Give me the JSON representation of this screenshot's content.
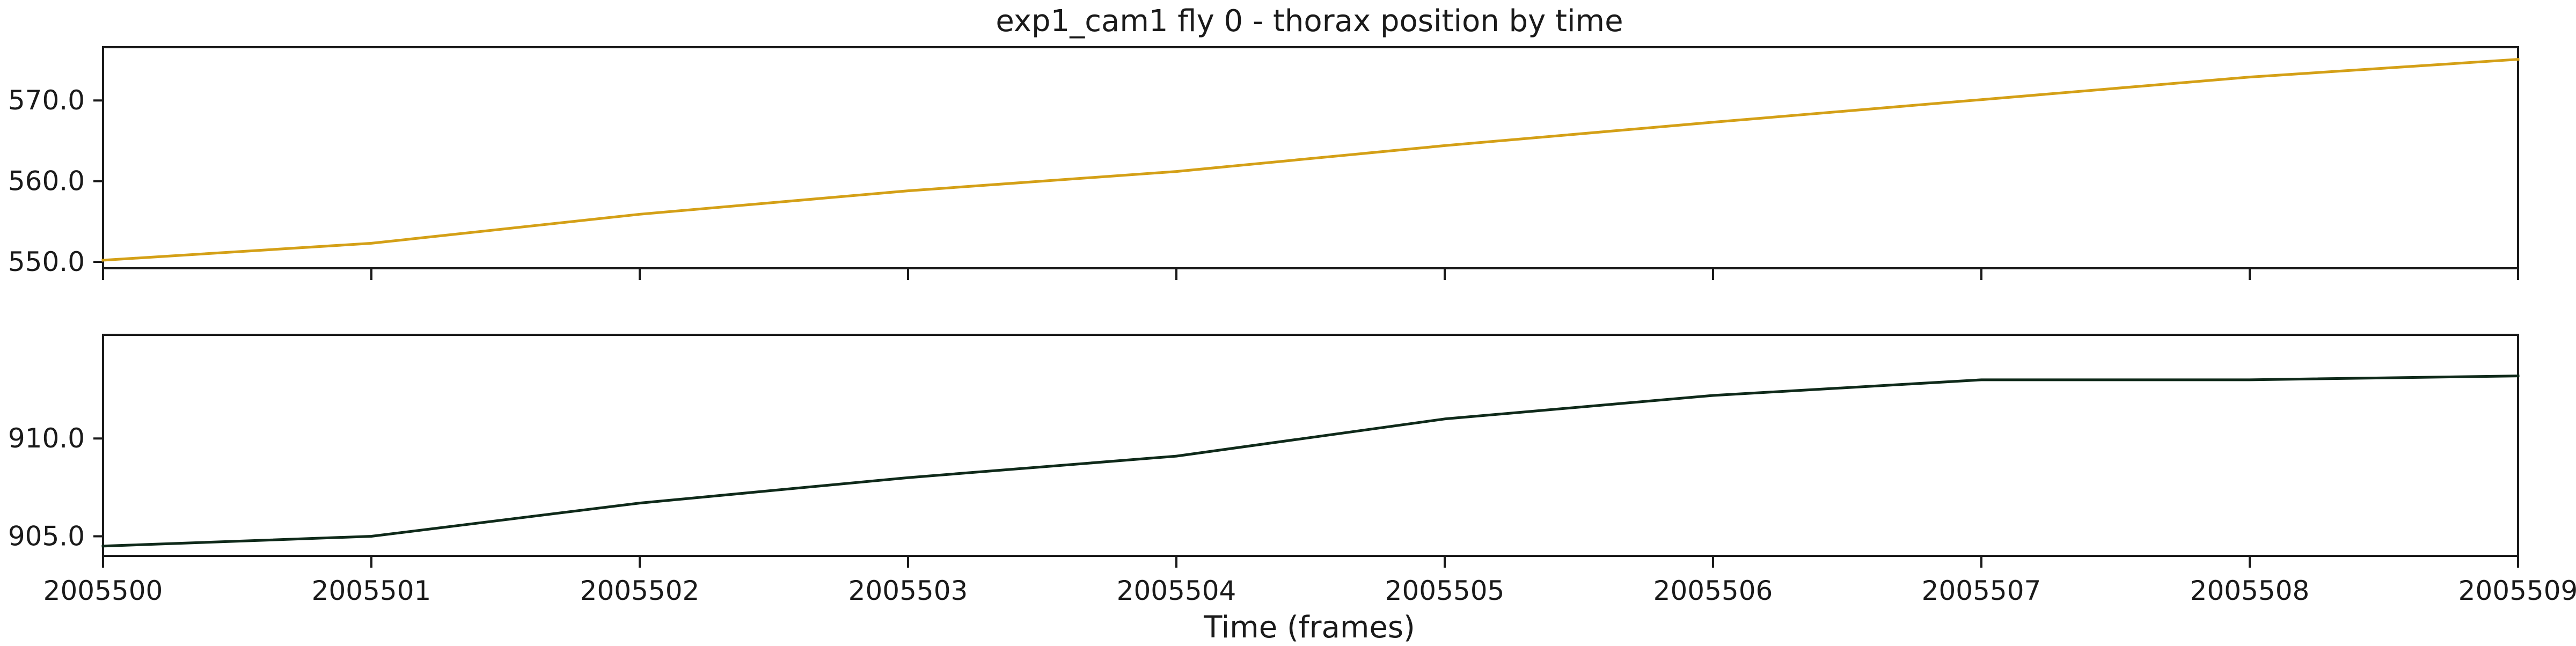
{
  "chart_data": {
    "type": "line",
    "title": "exp1_cam1 fly 0 - thorax position by time",
    "xlabel": "Time (frames)",
    "x": [
      2005500,
      2005501,
      2005502,
      2005503,
      2005504,
      2005505,
      2005506,
      2005507,
      2005508,
      2005509
    ],
    "xlim": [
      2005500,
      2005509
    ],
    "xticks": [
      "2005500",
      "2005501",
      "2005502",
      "2005503",
      "2005504",
      "2005505",
      "2005506",
      "2005507",
      "2005508",
      "2005509"
    ],
    "subplots": [
      {
        "ylabel": "",
        "ylim": [
          549.2,
          576.6
        ],
        "yticks": [
          "550.0",
          "560.0",
          "570.0"
        ],
        "ytick_values": [
          550,
          560,
          570
        ],
        "color": "#D4A017",
        "values": [
          550.2,
          552.3,
          555.9,
          558.8,
          561.2,
          564.4,
          567.3,
          570.1,
          572.9,
          575.1
        ]
      },
      {
        "ylabel": "",
        "ylim": [
          904.0,
          915.3
        ],
        "yticks": [
          "905.0",
          "910.0"
        ],
        "ytick_values": [
          905,
          910
        ],
        "color": "#0F2A1A",
        "values": [
          904.5,
          905.0,
          906.7,
          908.0,
          909.1,
          911.0,
          912.2,
          913.0,
          913.0,
          913.2
        ]
      }
    ],
    "grid": false,
    "legend": "none"
  }
}
